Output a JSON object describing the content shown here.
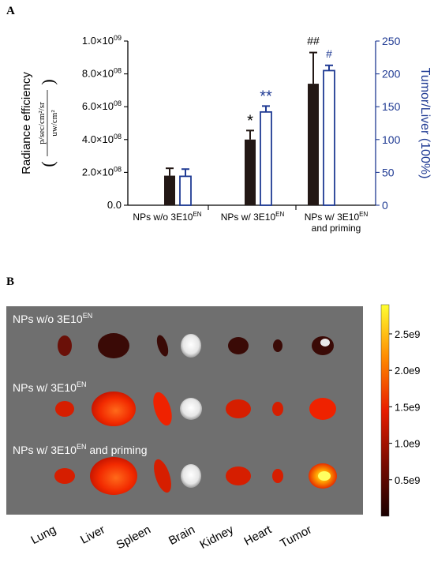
{
  "panels": {
    "a_label": "A",
    "b_label": "B"
  },
  "colors": {
    "bar_fill": "#231815",
    "hollow_stroke": "#1f3a93",
    "right_axis": "#1f3a93"
  },
  "chart_data": [
    {
      "type": "bar",
      "title": "",
      "categories": [
        "NPs w/o 3E10EN",
        "NPs w/ 3E10EN",
        "NPs w/ 3E10EN and priming"
      ],
      "category_display": [
        {
          "prefix": "NPs w/o 3E10",
          "sup": "EN",
          "line2": ""
        },
        {
          "prefix": "NPs w/ 3E10",
          "sup": "EN",
          "line2": ""
        },
        {
          "prefix": "NPs w/ 3E10",
          "sup": "EN",
          "line2": "and priming"
        }
      ],
      "ylabel": "Radiance efficiency",
      "ylabel_unit_numerator": "p/sec/cm²/sr",
      "ylabel_unit_denominator": "uw/cm²",
      "ylabel_right": "Tumor/Liver (100%)",
      "ylim": [
        0,
        1000000000
      ],
      "ylim_right": [
        0,
        250
      ],
      "yticks": [
        {
          "mant": "0.0",
          "exp": ""
        },
        {
          "mant": "2.0×10",
          "exp": "08"
        },
        {
          "mant": "4.0×10",
          "exp": "08"
        },
        {
          "mant": "6.0×10",
          "exp": "08"
        },
        {
          "mant": "8.0×10",
          "exp": "08"
        },
        {
          "mant": "1.0×10",
          "exp": "09"
        }
      ],
      "yticks_right": [
        "0",
        "50",
        "100",
        "150",
        "200",
        "250"
      ],
      "series": [
        {
          "axis": "left",
          "style": "filled",
          "values": [
            180000000,
            400000000,
            740000000
          ],
          "errors": [
            45000000,
            55000000,
            190000000
          ],
          "annotations": [
            "",
            "*",
            "##"
          ]
        },
        {
          "axis": "right",
          "style": "hollow",
          "values": [
            44,
            142,
            205
          ],
          "errors": [
            11,
            9,
            8
          ],
          "annotations": [
            "",
            "**",
            "#"
          ]
        }
      ],
      "grid": false
    },
    {
      "type": "heatmap",
      "title": "",
      "organs": [
        "Lung",
        "Liver",
        "Spleen",
        "Brain",
        "Kidney",
        "Heart",
        "Tumor"
      ],
      "row_labels": [
        {
          "prefix": "NPs w/o 3E10",
          "sup": "EN",
          "suffix": ""
        },
        {
          "prefix": "NPs w/ 3E10",
          "sup": "EN",
          "suffix": ""
        },
        {
          "prefix": "NPs w/ 3E10",
          "sup": "EN",
          "suffix": " and priming"
        }
      ],
      "colorbar_ticks": [
        "2.5e9",
        "2.0e9",
        "1.5e9",
        "1.0e9",
        "0.5e9"
      ],
      "colorbar_range": [
        0,
        2900000000
      ],
      "signal_levels": [
        [
          0.3,
          0.18,
          0.05,
          0.0,
          0.15,
          0.0,
          0.18
        ],
        [
          0.45,
          0.6,
          0.5,
          0.0,
          0.45,
          0.35,
          0.58
        ],
        [
          0.45,
          0.75,
          0.35,
          0.0,
          0.42,
          0.4,
          0.95
        ]
      ],
      "grey_organs": [
        3
      ]
    }
  ]
}
